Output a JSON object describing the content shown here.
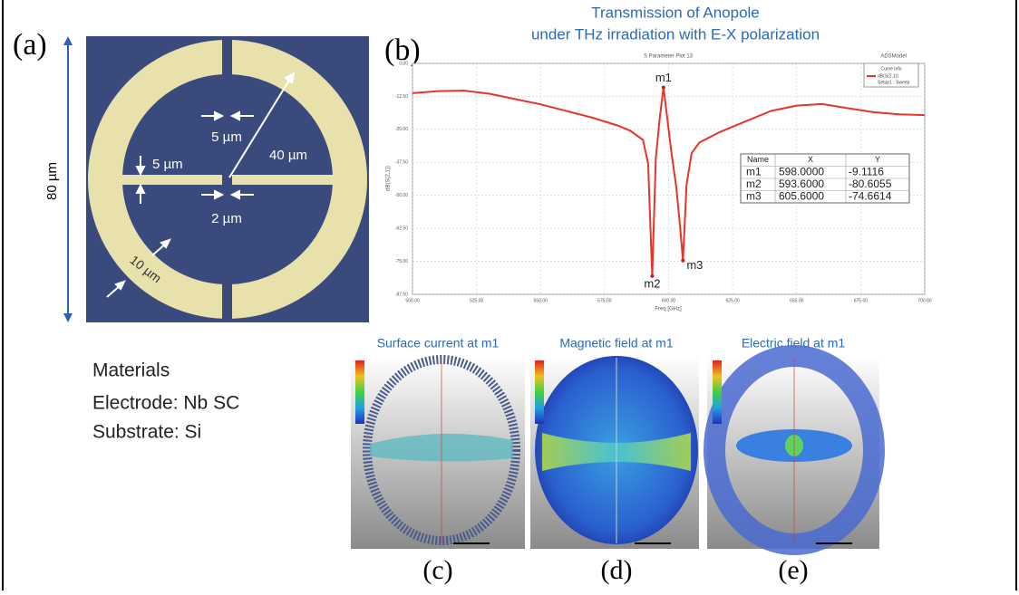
{
  "panel_labels": [
    "(a)",
    "(b)",
    "(c)",
    "(d)",
    "(e)"
  ],
  "diagram": {
    "gap_top": "5 µm",
    "bar_width": "5 µm",
    "radius": "40 µm",
    "center_gap": "2 µm",
    "ring_width": "10 µm",
    "size": "80 µm"
  },
  "materials": {
    "title": "Materials",
    "electrode": "Electrode: Nb SC",
    "substrate": "Substrate: Si"
  },
  "chart_data": {
    "type": "line",
    "title": "Transmission of Anopole",
    "subtitle": "under THz irradiation with E-X  polarization",
    "plot_title": "S Parameter Plot 13",
    "design_name": "ADSModel",
    "x_label": "Freq [GHz]",
    "y_label": "dB(S(2,1))",
    "legend_title": "Curve Info",
    "legend_setup": "Setup1 : Sweep",
    "x": [
      500,
      510,
      520,
      530,
      540,
      550,
      560,
      570,
      580,
      585,
      590,
      592,
      593.6,
      595,
      596.5,
      598,
      599.5,
      601,
      603,
      604.5,
      605.6,
      607,
      609,
      612,
      620,
      630,
      640,
      650,
      660,
      670,
      680,
      690,
      700
    ],
    "series": [
      {
        "name": "dB(S(2,1))",
        "color": "#e8332a",
        "values": [
          -11.3,
          -10.5,
          -10.3,
          -11.5,
          -13.5,
          -15.5,
          -18,
          -20.5,
          -23.5,
          -25.5,
          -29,
          -38,
          -80.6055,
          -36,
          -21,
          -9.1116,
          -21,
          -33,
          -47,
          -62,
          -74.6614,
          -46,
          -34,
          -30,
          -26,
          -22,
          -18,
          -16,
          -15.4,
          -17,
          -18.5,
          -19.3,
          -19.6
        ]
      }
    ],
    "xlim": [
      500,
      700
    ],
    "ylim": [
      -87.5,
      0
    ],
    "xticks": [
      {
        "value": 500,
        "label": "500.00"
      },
      {
        "value": 525,
        "label": "525.00"
      },
      {
        "value": 550,
        "label": "550.00"
      },
      {
        "value": 575,
        "label": "575.00"
      },
      {
        "value": 600,
        "label": "600.00"
      },
      {
        "value": 625,
        "label": "625.00"
      },
      {
        "value": 650,
        "label": "650.00"
      },
      {
        "value": 675,
        "label": "675.00"
      },
      {
        "value": 700,
        "label": "700.00"
      }
    ],
    "yticks": [
      {
        "value": 0,
        "label": "0.00"
      },
      {
        "value": -12.5,
        "label": "-12.50"
      },
      {
        "value": -25,
        "label": "-25.00"
      },
      {
        "value": -37.5,
        "label": "-37.50"
      },
      {
        "value": -50,
        "label": "-50.00"
      },
      {
        "value": -62.5,
        "label": "-62.50"
      },
      {
        "value": -75,
        "label": "-75.00"
      },
      {
        "value": -87.5,
        "label": "-87.50"
      }
    ],
    "grid": true,
    "marker_header": [
      "Name",
      "X",
      "Y"
    ],
    "markers": [
      {
        "name": "m1",
        "x": 598,
        "x_label": "598.0000",
        "y": -9.1116
      },
      {
        "name": "m2",
        "x": 593.6,
        "x_label": "593.6000",
        "y": -80.6055
      },
      {
        "name": "m3",
        "x": 605.6,
        "x_label": "605.6000",
        "y": -74.6614
      }
    ]
  },
  "field_maps": [
    {
      "title": "Surface current at m1"
    },
    {
      "title": "Magnetic field at m1"
    },
    {
      "title": "Electric field at m1"
    }
  ]
}
